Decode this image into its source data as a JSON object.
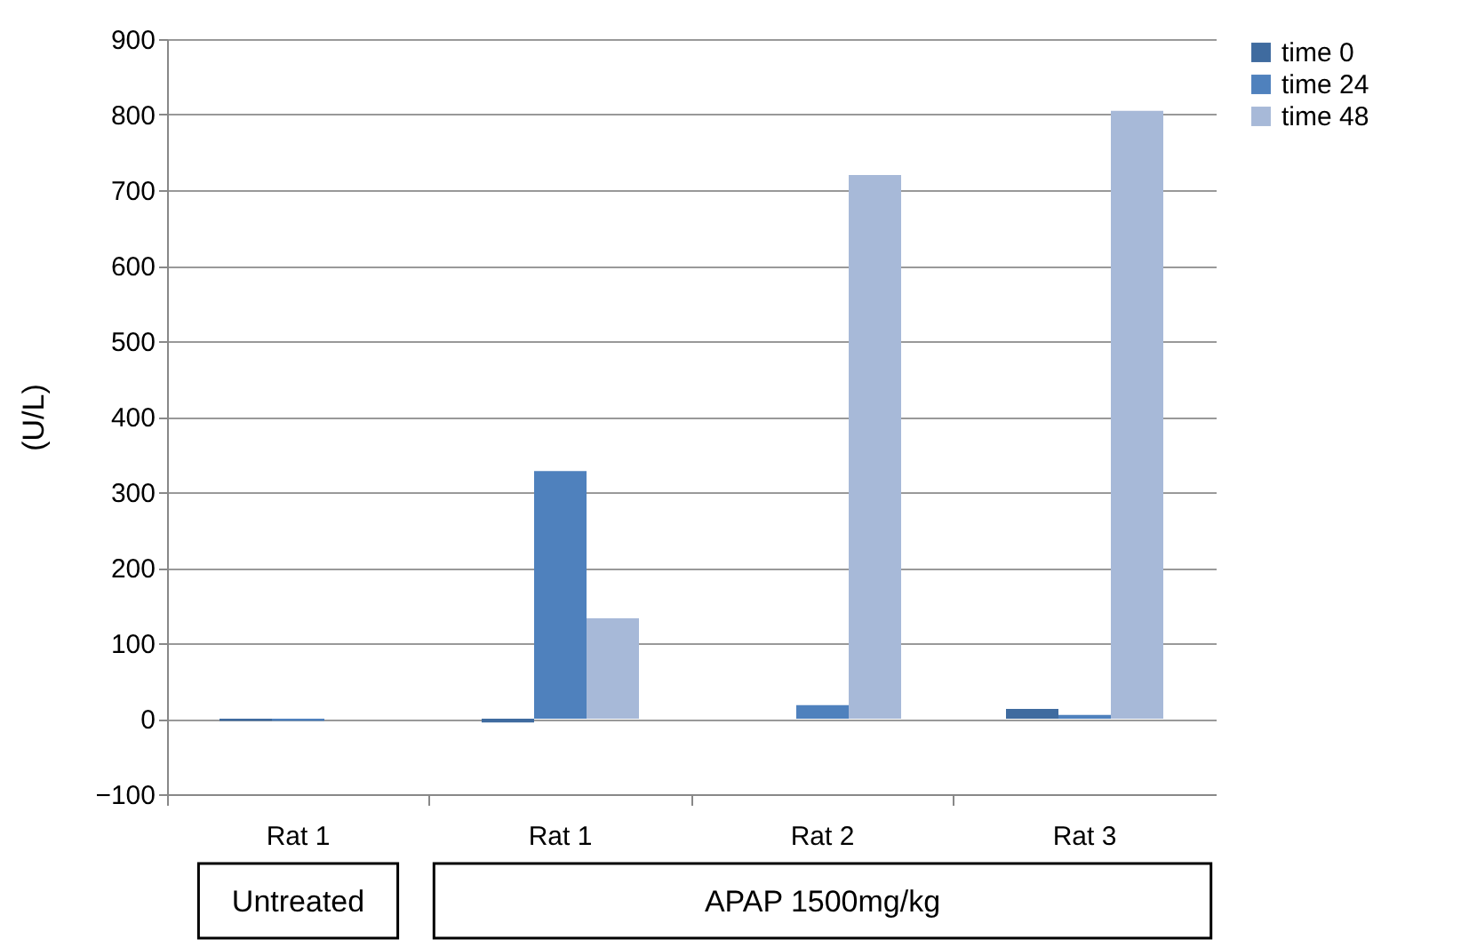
{
  "chart_data": {
    "type": "bar",
    "ylabel": "(U/L)",
    "categories": [
      "Rat 1",
      "Rat 1",
      "Rat 2",
      "Rat 3"
    ],
    "series": [
      {
        "name": "time 0",
        "color": "#3f6b9f",
        "values": [
          -3,
          -5,
          0,
          13
        ]
      },
      {
        "name": "time 24",
        "color": "#4f81bd",
        "values": [
          -3,
          328,
          18,
          5
        ]
      },
      {
        "name": "time 48",
        "color": "#a7b9d8",
        "values": [
          null,
          133,
          720,
          805
        ]
      }
    ],
    "ylim": [
      -100,
      900
    ],
    "yticks": [
      -100,
      0,
      100,
      200,
      300,
      400,
      500,
      600,
      700,
      800,
      900
    ],
    "grid": "y",
    "legend": "right",
    "annotations": [
      "Untreated",
      "APAP 1500mg/kg"
    ]
  }
}
